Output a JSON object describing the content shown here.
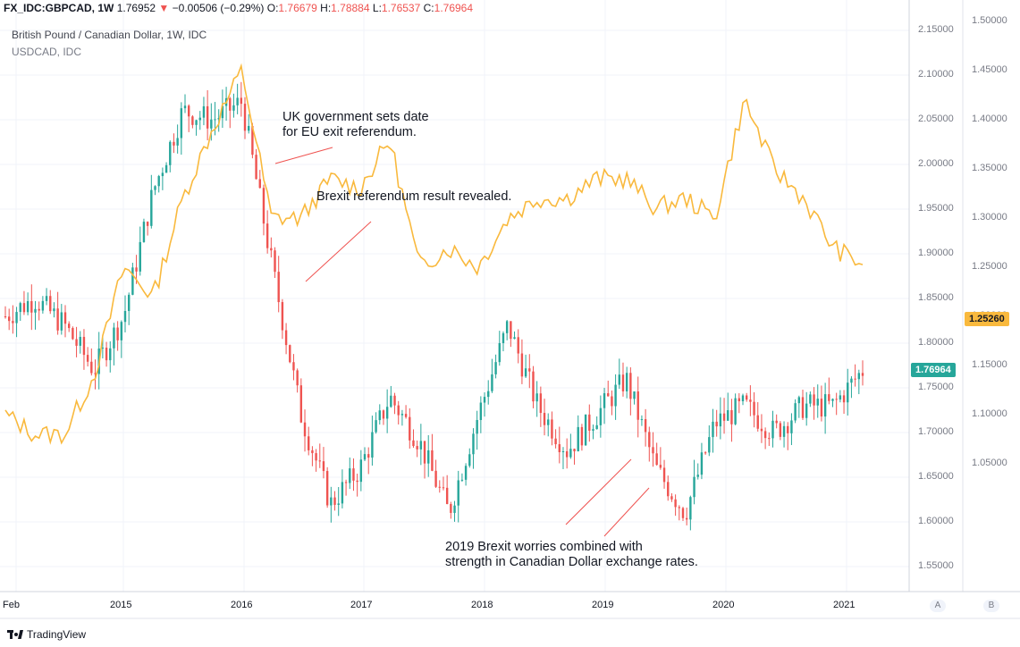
{
  "header": {
    "symbol": "FX_IDC:GBPCAD, 1W",
    "last": "1.76952",
    "change": "−0.00506 (−0.29%)",
    "o_label": "O:",
    "o": "1.76679",
    "h_label": "H:",
    "h": "1.78884",
    "l_label": "L:",
    "l": "1.76537",
    "c_label": "C:",
    "c": "1.76964",
    "title": "British Pound / Canadian Dollar, 1W, IDC",
    "compare": "USDCAD, IDC"
  },
  "annotations": [
    "UK government sets date\nfor EU exit referendum.",
    "Brexit referendum result revealed.",
    "2019 Brexit worries combined with\nstrength in Canadian Dollar exchange rates."
  ],
  "axes": {
    "left_scale_button": "A",
    "right_scale_button": "B",
    "x_ticks": [
      "Feb",
      "2015",
      "2016",
      "2017",
      "2018",
      "2019",
      "2020",
      "2021"
    ],
    "y_ticks": [
      "2.15000",
      "2.10000",
      "2.05000",
      "2.00000",
      "1.95000",
      "1.90000",
      "1.85000",
      "1.80000",
      "1.75000",
      "1.70000",
      "1.65000",
      "1.60000",
      "1.55000"
    ],
    "y2_ticks": [
      "1.50000",
      "1.45000",
      "1.40000",
      "1.35000",
      "1.30000",
      "1.25000",
      "1.20000",
      "1.15000",
      "1.10000",
      "1.05000"
    ],
    "gbpcad_badge": "1.76964",
    "usdcad_badge": "1.25260"
  },
  "colors": {
    "up": "#26a69a",
    "down": "#ef5350",
    "usdcad": "#f9b93d",
    "badge_gbpcad": "#26a69a",
    "badge_usdcad": "#f9b93d"
  },
  "brand": "TradingView",
  "chart_data": {
    "type": "line",
    "title": "British Pound / Canadian Dollar, 1W, IDC",
    "x": [
      "2014-02",
      "2014-05",
      "2014-08",
      "2014-11",
      "2015-02",
      "2015-05",
      "2015-08",
      "2015-11",
      "2016-01",
      "2016-04",
      "2016-07",
      "2016-10",
      "2017-01",
      "2017-04",
      "2017-07",
      "2017-10",
      "2018-01",
      "2018-04",
      "2018-07",
      "2018-10",
      "2019-01",
      "2019-04",
      "2019-07",
      "2019-10",
      "2020-01",
      "2020-04",
      "2020-07",
      "2020-10",
      "2021-01",
      "2021-02"
    ],
    "series": [
      {
        "name": "FX_IDC:GBPCAD",
        "axis": "left",
        "values": [
          1.83,
          1.85,
          1.82,
          1.77,
          1.83,
          1.97,
          2.06,
          2.05,
          2.07,
          1.89,
          1.72,
          1.62,
          1.66,
          1.74,
          1.69,
          1.61,
          1.72,
          1.82,
          1.73,
          1.68,
          1.72,
          1.76,
          1.66,
          1.61,
          1.71,
          1.73,
          1.7,
          1.73,
          1.73,
          1.76964
        ]
      },
      {
        "name": "USDCAD, IDC",
        "axis": "right",
        "values": [
          1.1,
          1.08,
          1.08,
          1.14,
          1.25,
          1.22,
          1.32,
          1.39,
          1.45,
          1.3,
          1.3,
          1.34,
          1.33,
          1.38,
          1.25,
          1.27,
          1.25,
          1.3,
          1.32,
          1.32,
          1.34,
          1.34,
          1.31,
          1.32,
          1.3,
          1.42,
          1.35,
          1.32,
          1.27,
          1.2526
        ]
      }
    ],
    "y_range_left": [
      1.52,
      2.16
    ],
    "y_range_right": [
      1.02,
      1.5
    ],
    "grid": true,
    "legend": "top-left"
  }
}
